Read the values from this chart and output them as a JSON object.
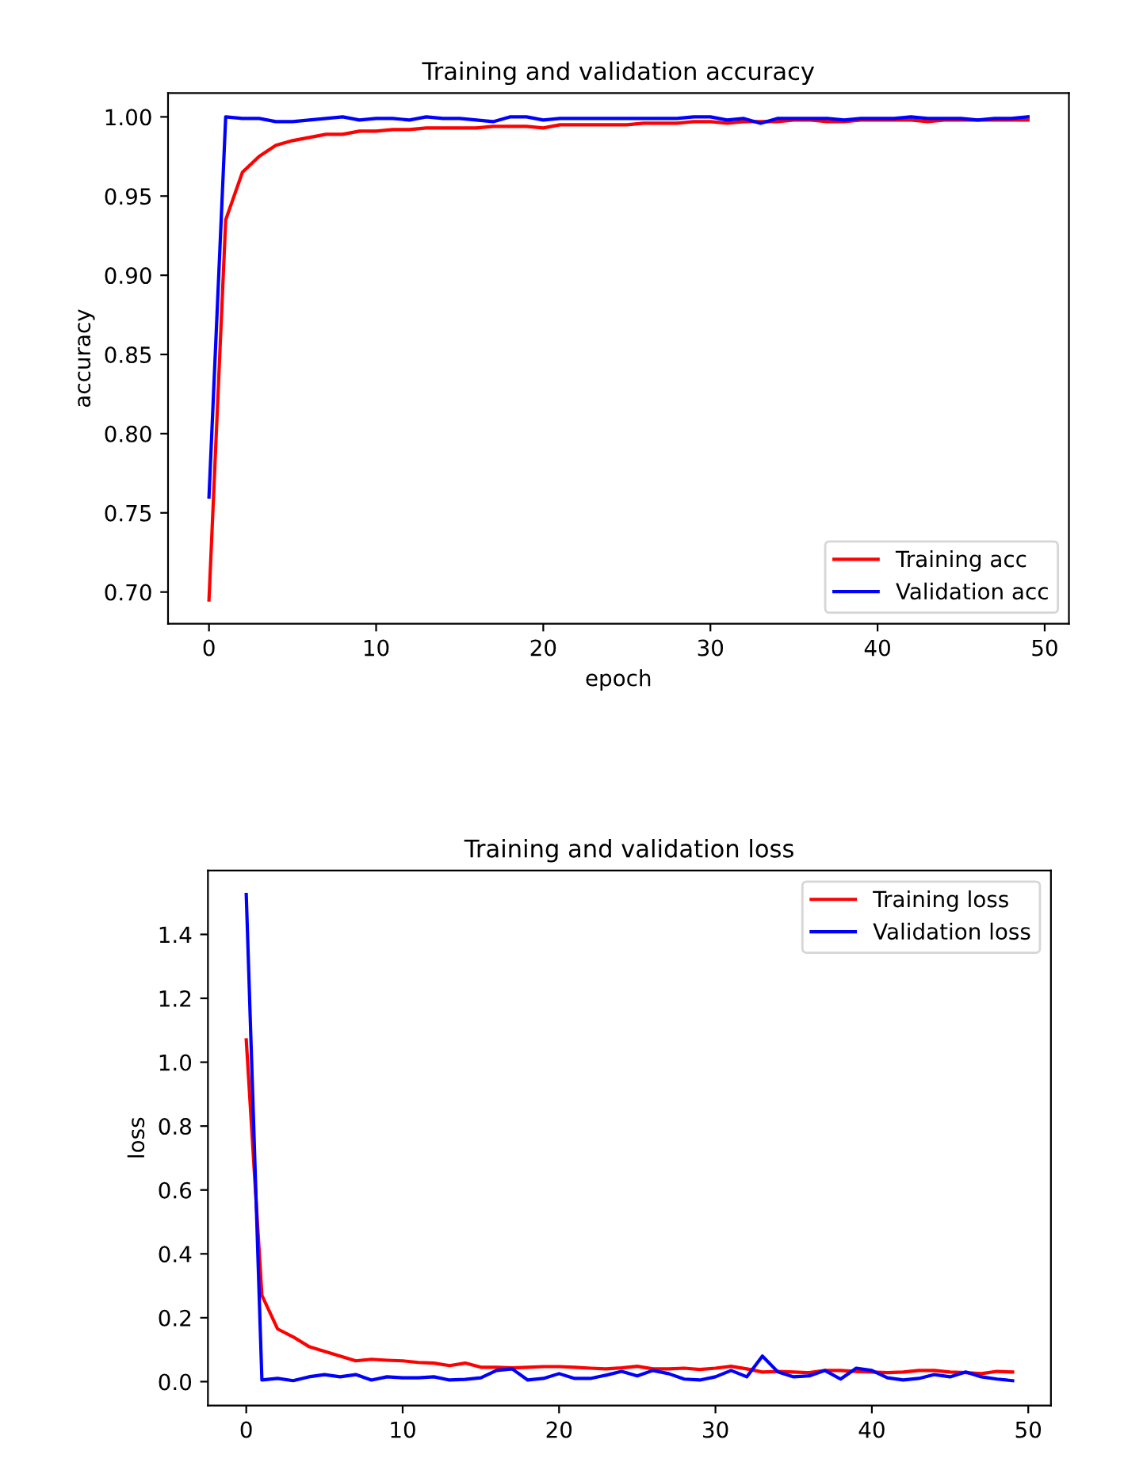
{
  "chart_data": [
    {
      "type": "line",
      "title": "Training and validation accuracy",
      "xlabel": "epoch",
      "ylabel": "accuracy",
      "x": [
        0,
        1,
        2,
        3,
        4,
        5,
        6,
        7,
        8,
        9,
        10,
        11,
        12,
        13,
        14,
        15,
        16,
        17,
        18,
        19,
        20,
        21,
        22,
        23,
        24,
        25,
        26,
        27,
        28,
        29,
        30,
        31,
        32,
        33,
        34,
        35,
        36,
        37,
        38,
        39,
        40,
        41,
        42,
        43,
        44,
        45,
        46,
        47,
        48,
        49
      ],
      "series": [
        {
          "name": "Training acc",
          "color": "#ff0000",
          "values": [
            0.695,
            0.935,
            0.965,
            0.975,
            0.982,
            0.985,
            0.987,
            0.989,
            0.989,
            0.991,
            0.991,
            0.992,
            0.992,
            0.993,
            0.993,
            0.993,
            0.993,
            0.994,
            0.994,
            0.994,
            0.993,
            0.995,
            0.995,
            0.995,
            0.995,
            0.995,
            0.996,
            0.996,
            0.996,
            0.997,
            0.997,
            0.996,
            0.997,
            0.997,
            0.997,
            0.998,
            0.998,
            0.997,
            0.997,
            0.998,
            0.998,
            0.998,
            0.998,
            0.997,
            0.998,
            0.998,
            0.998,
            0.998,
            0.998,
            0.998
          ]
        },
        {
          "name": "Validation acc",
          "color": "#0000ff",
          "values": [
            0.76,
            1.0,
            0.999,
            0.999,
            0.997,
            0.997,
            0.998,
            0.999,
            1.0,
            0.998,
            0.999,
            0.999,
            0.998,
            1.0,
            0.999,
            0.999,
            0.998,
            0.997,
            1.0,
            1.0,
            0.998,
            0.999,
            0.999,
            0.999,
            0.999,
            0.999,
            0.999,
            0.999,
            0.999,
            1.0,
            1.0,
            0.998,
            0.999,
            0.996,
            0.999,
            0.999,
            0.999,
            0.999,
            0.998,
            0.999,
            0.999,
            0.999,
            1.0,
            0.999,
            0.999,
            0.999,
            0.998,
            0.999,
            0.999,
            1.0
          ]
        }
      ],
      "xlim": [
        -2.45,
        51.45
      ],
      "xticks": [
        0,
        10,
        20,
        30,
        40,
        50
      ],
      "ylim": [
        0.68,
        1.015
      ],
      "yticks": [
        {
          "value": 0.7,
          "label": "0.70"
        },
        {
          "value": 0.75,
          "label": "0.75"
        },
        {
          "value": 0.8,
          "label": "0.80"
        },
        {
          "value": 0.85,
          "label": "0.85"
        },
        {
          "value": 0.9,
          "label": "0.90"
        },
        {
          "value": 0.95,
          "label": "0.95"
        },
        {
          "value": 1.0,
          "label": "1.00"
        }
      ],
      "legend": "lower right",
      "grid": false,
      "marker": "none",
      "line_style": "solid"
    },
    {
      "type": "line",
      "title": "Training and validation loss",
      "ylabel": "loss",
      "x": [
        0,
        1,
        2,
        3,
        4,
        5,
        6,
        7,
        8,
        9,
        10,
        11,
        12,
        13,
        14,
        15,
        16,
        17,
        18,
        19,
        20,
        21,
        22,
        23,
        24,
        25,
        26,
        27,
        28,
        29,
        30,
        31,
        32,
        33,
        34,
        35,
        36,
        37,
        38,
        39,
        40,
        41,
        42,
        43,
        44,
        45,
        46,
        47,
        48,
        49
      ],
      "series": [
        {
          "name": "Training loss",
          "color": "#ff0000",
          "values": [
            1.07,
            0.27,
            0.165,
            0.14,
            0.11,
            0.095,
            0.08,
            0.065,
            0.07,
            0.067,
            0.065,
            0.06,
            0.058,
            0.05,
            0.058,
            0.045,
            0.045,
            0.043,
            0.045,
            0.047,
            0.047,
            0.045,
            0.042,
            0.04,
            0.043,
            0.048,
            0.04,
            0.04,
            0.042,
            0.038,
            0.042,
            0.048,
            0.04,
            0.03,
            0.032,
            0.03,
            0.028,
            0.035,
            0.035,
            0.032,
            0.03,
            0.028,
            0.03,
            0.035,
            0.035,
            0.03,
            0.028,
            0.025,
            0.032,
            0.03
          ]
        },
        {
          "name": "Validation loss",
          "color": "#0000ff",
          "values": [
            1.525,
            0.005,
            0.01,
            0.003,
            0.015,
            0.022,
            0.015,
            0.022,
            0.005,
            0.015,
            0.012,
            0.012,
            0.015,
            0.005,
            0.007,
            0.012,
            0.035,
            0.04,
            0.005,
            0.01,
            0.025,
            0.01,
            0.01,
            0.02,
            0.032,
            0.018,
            0.035,
            0.025,
            0.008,
            0.005,
            0.015,
            0.035,
            0.015,
            0.08,
            0.03,
            0.015,
            0.018,
            0.035,
            0.008,
            0.042,
            0.035,
            0.012,
            0.005,
            0.01,
            0.022,
            0.015,
            0.03,
            0.015,
            0.008,
            0.003
          ]
        }
      ],
      "xlim": [
        -2.45,
        51.45
      ],
      "xticks": [
        0,
        10,
        20,
        30,
        40,
        50
      ],
      "ylim": [
        -0.075,
        1.6
      ],
      "yticks": [
        {
          "value": 0,
          "label": "0.0"
        },
        {
          "value": 0.2,
          "label": "0.2"
        },
        {
          "value": 0.4,
          "label": "0.4"
        },
        {
          "value": 0.6,
          "label": "0.6"
        },
        {
          "value": 0.8,
          "label": "0.8"
        },
        {
          "value": 1.0,
          "label": "1.0"
        },
        {
          "value": 1.2,
          "label": "1.2"
        },
        {
          "value": 1.4,
          "label": "1.4"
        }
      ],
      "legend": "upper right",
      "grid": false,
      "marker": "none",
      "line_style": "solid"
    }
  ]
}
